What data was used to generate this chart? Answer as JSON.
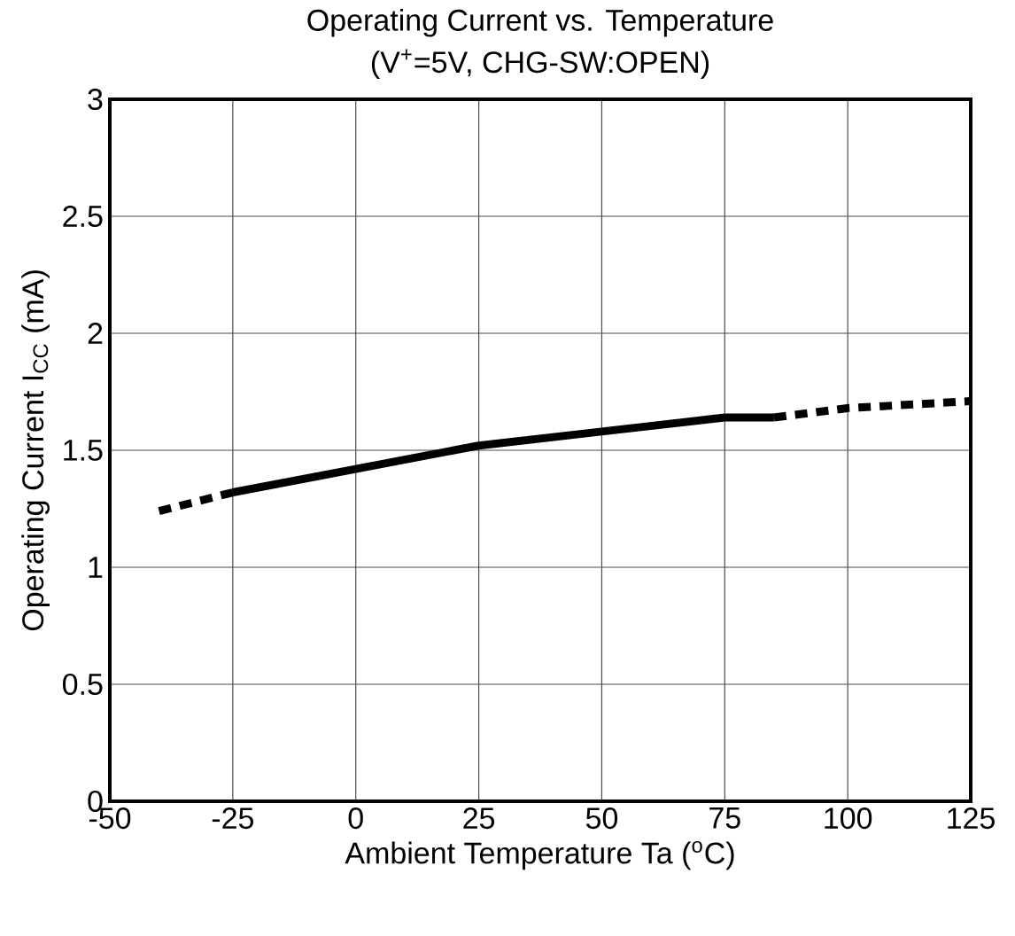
{
  "chart_data": {
    "type": "line",
    "title": "Operating Current vs. Temperature",
    "subtitle": "(V$^{+}$=5V, CHG-SW:OPEN)",
    "xlabel": "Ambient Temperature Ta  ($^{o}$C)",
    "ylabel": "Operating Current  I$_{CC}$  (mA)",
    "series": [
      {
        "color": "#000000",
        "line_style": "dashed",
        "x": [
          -40,
          -25
        ],
        "values": [
          1.24,
          1.32
        ]
      },
      {
        "color": "#000000",
        "line_style": "solid",
        "x": [
          -25,
          0,
          25,
          50,
          75,
          85
        ],
        "values": [
          1.32,
          1.42,
          1.52,
          1.58,
          1.64,
          1.64
        ]
      },
      {
        "color": "#000000",
        "line_style": "dashed",
        "x": [
          85,
          100,
          125
        ],
        "values": [
          1.64,
          1.68,
          1.71
        ]
      }
    ],
    "xlim": [
      -50,
      125
    ],
    "xticks": [
      -50,
      -25,
      0,
      25,
      50,
      75,
      100,
      125
    ],
    "ylim": [
      0,
      3
    ],
    "yticks": [
      0,
      0.5,
      1,
      1.5,
      2,
      2.5,
      3
    ],
    "grid": true,
    "legend": false,
    "marker": "none"
  }
}
